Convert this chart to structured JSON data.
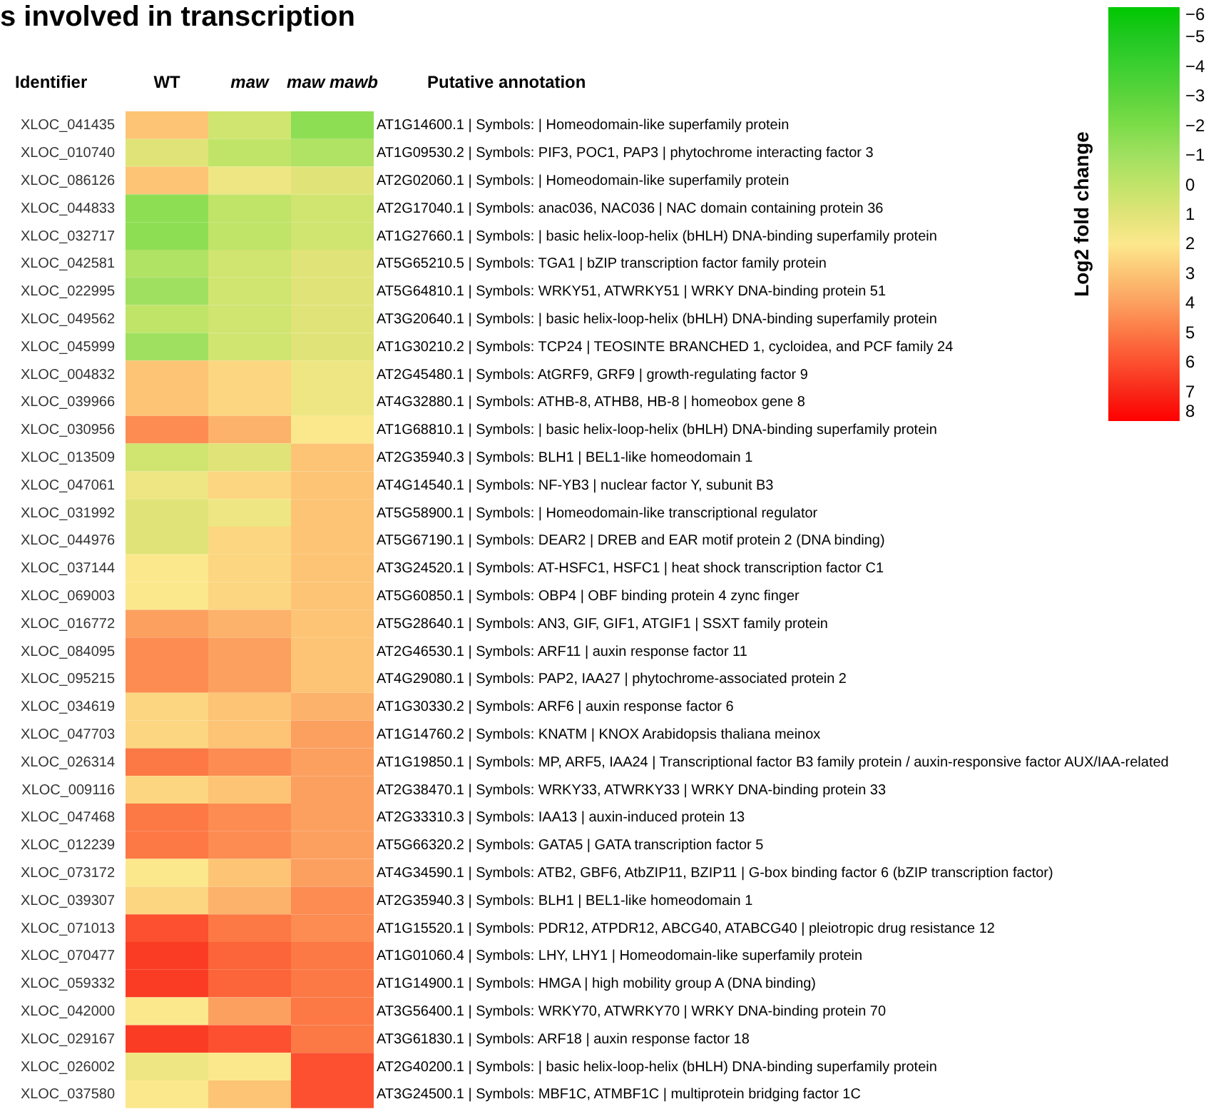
{
  "chart_data": {
    "type": "heatmap",
    "title": "s involved in transcription",
    "ylabel": "Identifier",
    "y2label": "Putative annotation",
    "clabel": "Log2 fold change",
    "categories": [
      "WT",
      "maw",
      "maw mawb"
    ],
    "y_categories": [
      "XLOC_041435",
      "XLOC_010740",
      "XLOC_086126",
      "XLOC_044833",
      "XLOC_032717",
      "XLOC_042581",
      "XLOC_022995",
      "XLOC_049562",
      "XLOC_045999",
      "XLOC_004832",
      "XLOC_039966",
      "XLOC_030956",
      "XLOC_013509",
      "XLOC_047061",
      "XLOC_031992",
      "XLOC_044976",
      "XLOC_037144",
      "XLOC_069003",
      "XLOC_016772",
      "XLOC_084095",
      "XLOC_095215",
      "XLOC_034619",
      "XLOC_047703",
      "XLOC_026314",
      "XLOC_009116",
      "XLOC_047468",
      "XLOC_012239",
      "XLOC_073172",
      "XLOC_039307",
      "XLOC_071013",
      "XLOC_070477",
      "XLOC_059332",
      "XLOC_042000",
      "XLOC_029167",
      "XLOC_026002",
      "XLOC_037580"
    ],
    "y2_categories": [
      "AT1G14600.1 | Symbols:  | Homeodomain-like superfamily protein",
      "AT1G09530.2 | Symbols: PIF3, POC1, PAP3 | phytochrome interacting factor 3",
      "AT2G02060.1 | Symbols:  | Homeodomain-like superfamily protein",
      "AT2G17040.1 | Symbols: anac036, NAC036 | NAC domain containing protein 36",
      "AT1G27660.1 | Symbols:  | basic helix-loop-helix (bHLH) DNA-binding superfamily protein",
      "AT5G65210.5 | Symbols: TGA1 | bZIP transcription factor family protein",
      "AT5G64810.1 | Symbols: WRKY51, ATWRKY51 | WRKY DNA-binding protein 51",
      "AT3G20640.1 | Symbols:  | basic helix-loop-helix (bHLH) DNA-binding superfamily protein",
      "AT1G30210.2 | Symbols: TCP24 | TEOSINTE BRANCHED 1, cycloidea, and PCF family 24",
      "AT2G45480.1 | Symbols: AtGRF9, GRF9 | growth-regulating factor 9",
      "AT4G32880.1 | Symbols: ATHB-8, ATHB8, HB-8 | homeobox gene 8",
      "AT1G68810.1 | Symbols:  | basic helix-loop-helix (bHLH) DNA-binding superfamily protein",
      "AT2G35940.3 | Symbols: BLH1 | BEL1-like homeodomain 1",
      "AT4G14540.1 | Symbols: NF-YB3 | nuclear factor Y, subunit B3",
      "AT5G58900.1 | Symbols:  | Homeodomain-like transcriptional regulator",
      "AT5G67190.1 | Symbols: DEAR2 | DREB and EAR motif protein 2 (DNA binding)",
      "AT3G24520.1 | Symbols: AT-HSFC1, HSFC1 | heat shock transcription factor  C1",
      "AT5G60850.1 | Symbols: OBP4 | OBF binding protein 4 zync finger",
      "AT5G28640.1 | Symbols: AN3, GIF, GIF1, ATGIF1 | SSXT family protein",
      "AT2G46530.1 | Symbols: ARF11 | auxin response factor 11",
      "AT4G29080.1 | Symbols: PAP2, IAA27 | phytochrome-associated protein 2",
      "AT1G30330.2 | Symbols: ARF6 | auxin response factor 6",
      "AT1G14760.2 | Symbols: KNATM | KNOX Arabidopsis thaliana meinox",
      "AT1G19850.1 | Symbols: MP, ARF5, IAA24 | Transcriptional factor B3 family protein / auxin-responsive factor AUX/IAA-related",
      "AT2G38470.1 | Symbols: WRKY33, ATWRKY33 | WRKY DNA-binding protein 33",
      "AT2G33310.3 | Symbols: IAA13 | auxin-induced protein 13",
      "AT5G66320.2 | Symbols: GATA5 | GATA transcription factor 5",
      "AT4G34590.1 | Symbols: ATB2, GBF6, AtbZIP11, BZIP11 | G-box binding factor 6 (bZIP transcription factor)",
      "AT2G35940.3 | Symbols: BLH1 | BEL1-like homeodomain 1",
      "AT1G15520.1 | Symbols: PDR12, ATPDR12, ABCG40, ATABCG40 | pleiotropic drug resistance 12",
      "AT1G01060.4 | Symbols: LHY, LHY1 | Homeodomain-like superfamily protein",
      "AT1G14900.1 | Symbols: HMGA | high mobility group A (DNA binding)",
      "AT3G56400.1 | Symbols: WRKY70, ATWRKY70 | WRKY DNA-binding protein 70",
      "AT3G61830.1 | Symbols: ARF18 | auxin response factor 18",
      "AT2G40200.1 | Symbols:  | basic helix-loop-helix (bHLH) DNA-binding superfamily protein",
      "AT3G24500.1 | Symbols: MBF1C, ATMBF1C | multiprotein bridging factor 1C"
    ],
    "cells": [
      [
        3,
        0.5,
        -1.5
      ],
      [
        1,
        0,
        -0.5
      ],
      [
        3,
        1.5,
        1
      ],
      [
        -1.5,
        0,
        0.5
      ],
      [
        -1.5,
        0,
        0.5
      ],
      [
        -0.5,
        0.5,
        1
      ],
      [
        -1,
        0.5,
        1
      ],
      [
        0,
        0.5,
        1
      ],
      [
        -1,
        0.5,
        1
      ],
      [
        3,
        2.5,
        1.5
      ],
      [
        3,
        2.5,
        1.5
      ],
      [
        4.5,
        3.5,
        2
      ],
      [
        0.5,
        1,
        3
      ],
      [
        1.5,
        2.5,
        3
      ],
      [
        1,
        1.5,
        3
      ],
      [
        1,
        2.5,
        3
      ],
      [
        2,
        2.5,
        3
      ],
      [
        2,
        2.5,
        3
      ],
      [
        4,
        3.5,
        3
      ],
      [
        4.5,
        4,
        3
      ],
      [
        4.5,
        4,
        3
      ],
      [
        2.5,
        3,
        3.5
      ],
      [
        2.5,
        3,
        4
      ],
      [
        5,
        4.5,
        4
      ],
      [
        2.5,
        3,
        4
      ],
      [
        5,
        4.5,
        4
      ],
      [
        5,
        4.5,
        4
      ],
      [
        2,
        3,
        4
      ],
      [
        2.5,
        3.5,
        4.5
      ],
      [
        6,
        5,
        4.5
      ],
      [
        6.5,
        5.5,
        5
      ],
      [
        6.5,
        5.5,
        5
      ],
      [
        2,
        4,
        5
      ],
      [
        6.5,
        6,
        5
      ],
      [
        1.5,
        2,
        6
      ],
      [
        2,
        3,
        6
      ]
    ],
    "clim": [
      -6,
      8
    ],
    "cticks": [
      -6,
      -5,
      -4,
      -3,
      -2,
      -1,
      0,
      1,
      2,
      3,
      4,
      5,
      6,
      7,
      8
    ]
  }
}
